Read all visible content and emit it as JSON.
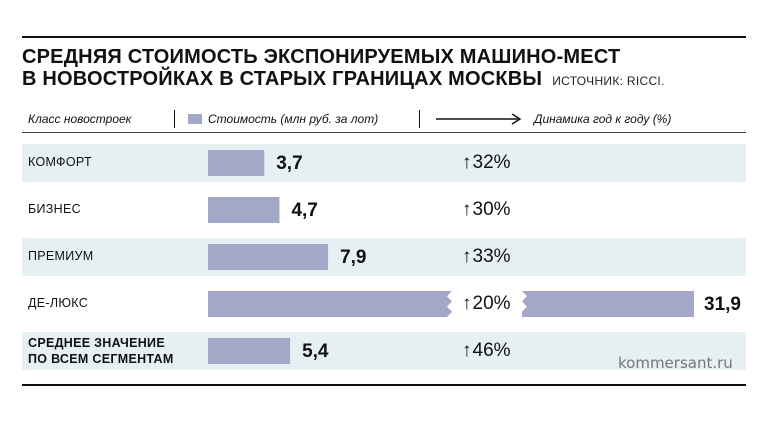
{
  "title_line1": "СРЕДНЯЯ СТОИМОСТЬ ЭКСПОНИРУЕМЫХ МАШИНО-МЕСТ",
  "title_line2": "В НОВОСТРОЙКАХ В СТАРЫХ ГРАНИЦАХ МОСКВЫ",
  "source": "ИСТОЧНИК: RICCI.",
  "header": {
    "col_class": "Класс новостроек",
    "col_cost": "Стоимость (млн руб. за лот)",
    "col_dyn": "Динамика год к году (%)"
  },
  "credit": "kommersant.ru",
  "colors": {
    "bar": "#a3a8c9",
    "shade": "#e6eff2"
  },
  "chart_data": {
    "type": "bar",
    "categories": [
      "КОМФОРТ",
      "БИЗНЕС",
      "ПРЕМИУМ",
      "ДЕ-ЛЮКС",
      "СРЕДНЕЕ ЗНАЧЕНИЕ ПО ВСЕМ СЕГМЕНТАМ"
    ],
    "category_lines": [
      [
        "КОМФОРТ"
      ],
      [
        "БИЗНЕС"
      ],
      [
        "ПРЕМИУМ"
      ],
      [
        "ДЕ-ЛЮКС"
      ],
      [
        "СРЕДНЕЕ ЗНАЧЕНИЕ",
        "ПО ВСЕМ СЕГМЕНТАМ"
      ]
    ],
    "values": [
      3.7,
      4.7,
      7.9,
      31.9,
      5.4
    ],
    "value_labels": [
      "3,7",
      "4,7",
      "7,9",
      "31,9",
      "5,4"
    ],
    "change_labels": [
      "32%",
      "30%",
      "33%",
      "20%",
      "46%"
    ],
    "change_symbol": "↑",
    "broken_bar": 3
  }
}
